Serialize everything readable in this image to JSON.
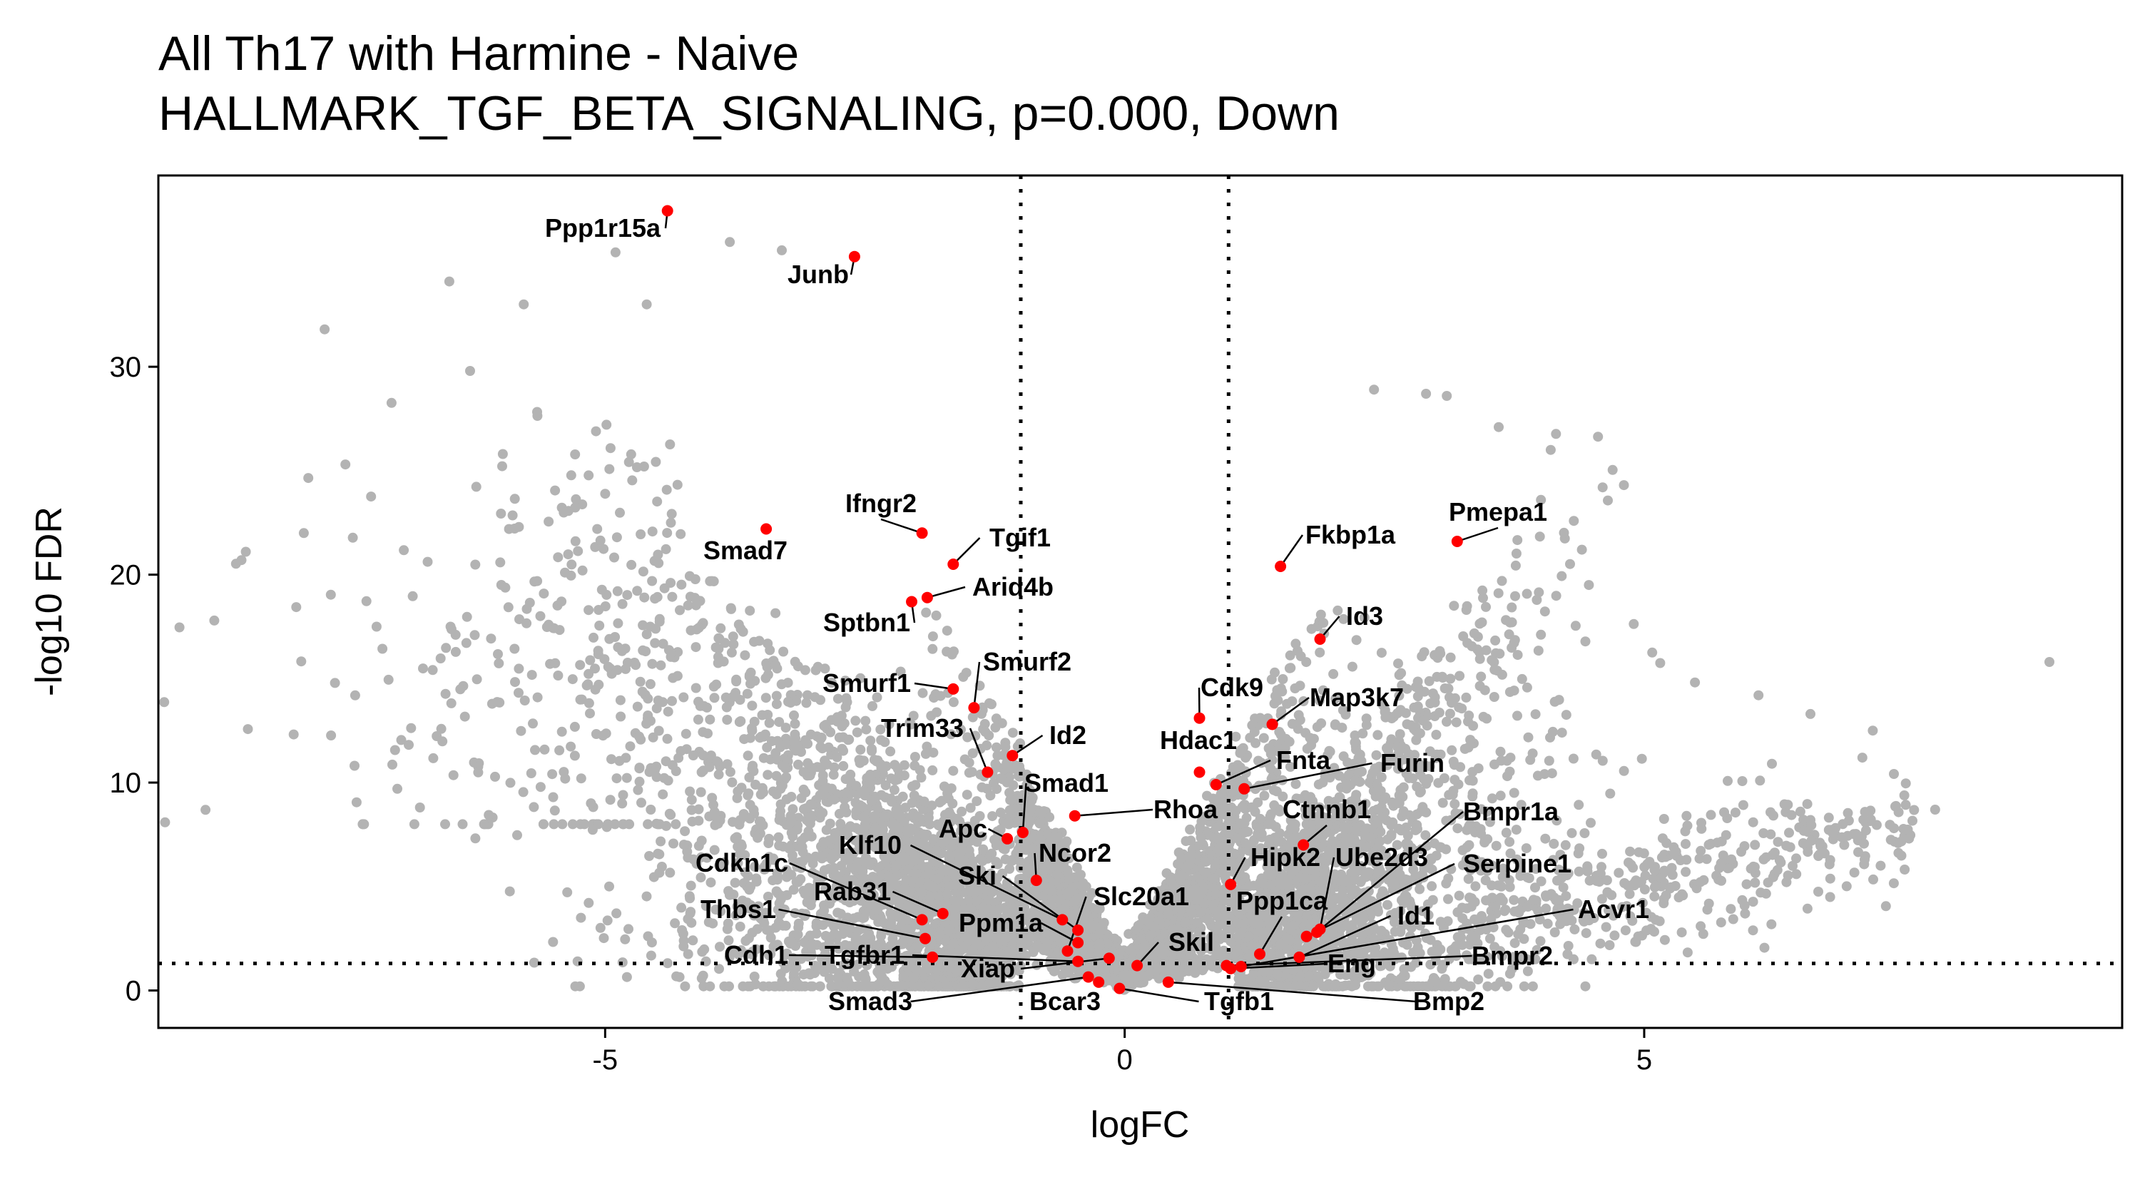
{
  "chart_data": {
    "type": "scatter",
    "title": "All Th17 with Harmine - Naive",
    "subtitle": "HALLMARK_TGF_BETA_SIGNALING, p=0.000, Down",
    "xlabel": "logFC",
    "ylabel": "-log10 FDR",
    "xlim": [
      -9.3,
      9.6
    ],
    "ylim": [
      -1.8,
      39.2
    ],
    "xticks": [
      -5,
      0,
      5
    ],
    "yticks": [
      0,
      10,
      20,
      30
    ],
    "grid": false,
    "legend": "none",
    "thresholds": {
      "logFC": [
        -1,
        1
      ],
      "neg_log10_fdr": 1.3
    },
    "background_color": "#b3b3b3",
    "highlight_color": "#ff0000",
    "highlight_set": "HALLMARK_TGF_BETA_SIGNALING",
    "genes": [
      {
        "name": "Ppp1r15a",
        "x": -4.4,
        "y": 37.5
      },
      {
        "name": "Junb",
        "x": -2.6,
        "y": 35.3
      },
      {
        "name": "Ifngr2",
        "x": -1.95,
        "y": 22.0
      },
      {
        "name": "Smad7",
        "x": -3.45,
        "y": 22.2
      },
      {
        "name": "Tgif1",
        "x": -1.65,
        "y": 20.5
      },
      {
        "name": "Arid4b",
        "x": -1.9,
        "y": 18.9
      },
      {
        "name": "Sptbn1",
        "x": -2.05,
        "y": 18.7
      },
      {
        "name": "Smurf2",
        "x": -1.45,
        "y": 13.6
      },
      {
        "name": "Smurf1",
        "x": -1.65,
        "y": 14.5
      },
      {
        "name": "Trim33",
        "x": -1.32,
        "y": 10.5
      },
      {
        "name": "Id2",
        "x": -1.08,
        "y": 11.3
      },
      {
        "name": "Smad1",
        "x": -0.98,
        "y": 7.6
      },
      {
        "name": "Apc",
        "x": -1.13,
        "y": 7.3
      },
      {
        "name": "Ncor2",
        "x": -0.85,
        "y": 5.3
      },
      {
        "name": "Rhoa",
        "x": -0.48,
        "y": 8.4
      },
      {
        "name": "Klf10",
        "x": -0.6,
        "y": 3.4
      },
      {
        "name": "Ski",
        "x": -0.45,
        "y": 2.9
      },
      {
        "name": "Cdkn1c",
        "x": -1.95,
        "y": 3.4
      },
      {
        "name": "Rab31",
        "x": -1.75,
        "y": 3.7
      },
      {
        "name": "Thbs1",
        "x": -1.92,
        "y": 2.5
      },
      {
        "name": "Ppm1a",
        "x": -0.45,
        "y": 2.3
      },
      {
        "name": "Slc20a1",
        "x": -0.55,
        "y": 1.9
      },
      {
        "name": "Cdh1",
        "x": -1.85,
        "y": 1.6
      },
      {
        "name": "Tgfbr1",
        "x": -0.45,
        "y": 1.4
      },
      {
        "name": "Xiap",
        "x": -0.15,
        "y": 1.55
      },
      {
        "name": "Smad3",
        "x": -0.35,
        "y": 0.65
      },
      {
        "name": "Bcar3",
        "x": -0.25,
        "y": 0.4
      },
      {
        "name": "Tgfb1",
        "x": -0.05,
        "y": 0.1
      },
      {
        "name": "Skil",
        "x": 0.12,
        "y": 1.2
      },
      {
        "name": "Bmp2",
        "x": 0.42,
        "y": 0.4
      },
      {
        "name": "Cdk9",
        "x": 0.72,
        "y": 13.1
      },
      {
        "name": "Hdac1",
        "x": 0.72,
        "y": 10.5
      },
      {
        "name": "Fnta",
        "x": 0.88,
        "y": 9.9
      },
      {
        "name": "Fkbp1a",
        "x": 1.5,
        "y": 20.4
      },
      {
        "name": "Pmepa1",
        "x": 3.2,
        "y": 21.6
      },
      {
        "name": "Id3",
        "x": 1.88,
        "y": 16.9
      },
      {
        "name": "Map3k7",
        "x": 1.42,
        "y": 12.8
      },
      {
        "name": "Furin",
        "x": 1.15,
        "y": 9.7
      },
      {
        "name": "Ctnnb1",
        "x": 1.72,
        "y": 7.0
      },
      {
        "name": "Hipk2",
        "x": 1.02,
        "y": 5.1
      },
      {
        "name": "Bmpr1a",
        "x": 1.85,
        "y": 2.8
      },
      {
        "name": "Ube2d3",
        "x": 1.88,
        "y": 2.95
      },
      {
        "name": "Serpine1",
        "x": 1.75,
        "y": 2.6
      },
      {
        "name": "Ppp1ca",
        "x": 1.3,
        "y": 1.75
      },
      {
        "name": "Id1",
        "x": 1.68,
        "y": 1.6
      },
      {
        "name": "Acvr1",
        "x": 1.12,
        "y": 1.15
      },
      {
        "name": "Eng",
        "x": 1.02,
        "y": 1.05
      },
      {
        "name": "Bmpr2",
        "x": 0.98,
        "y": 1.2
      }
    ]
  }
}
